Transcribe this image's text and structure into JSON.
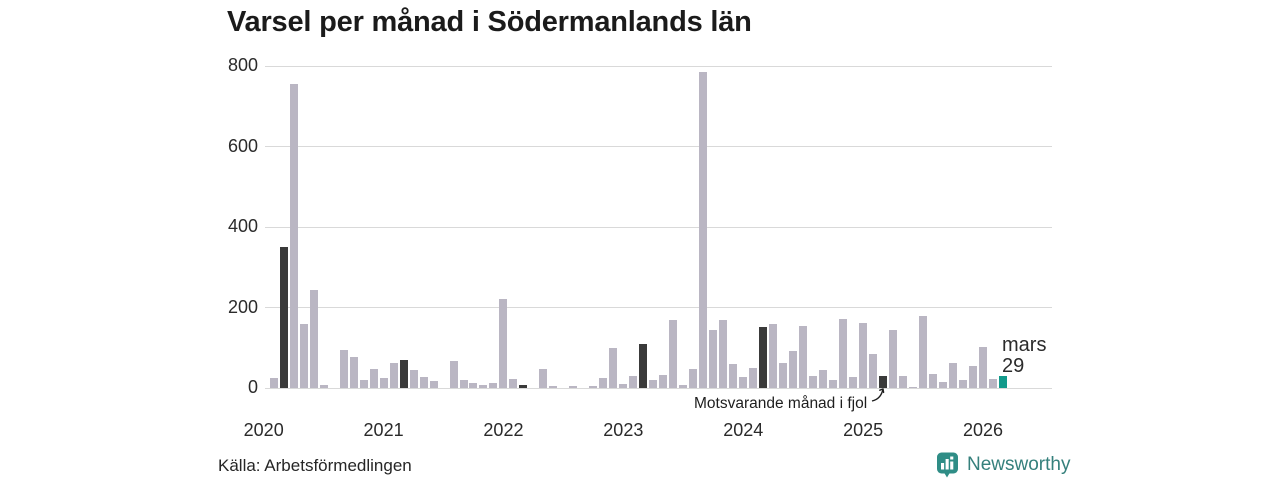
{
  "title": "Varsel per månad i Södermanlands län",
  "source": "Källa: Arbetsförmedlingen",
  "brand": {
    "name": "Newsworthy"
  },
  "annotation": {
    "text": "Motsvarande månad i fjol"
  },
  "current_label": {
    "line1": "mars",
    "line2": "29"
  },
  "colors": {
    "bar_normal": "#bab6c3",
    "bar_highlight": "#3a3a3a",
    "bar_current": "#129a8b",
    "grid": "#d9d9d9",
    "brand_teal": "#2f8d86"
  },
  "chart_data": {
    "type": "bar",
    "title": "Varsel per månad i Södermanlands län",
    "xlabel": "",
    "ylabel": "",
    "ylim": [
      0,
      800
    ],
    "yticks": [
      0,
      200,
      400,
      600,
      800
    ],
    "grid": "horizontal",
    "legend_position": "none",
    "year_ticks": [
      "2020",
      "2021",
      "2022",
      "2023",
      "2024",
      "2025",
      "2026"
    ],
    "highlight_month_index": 2,
    "highlight_meaning": "Motsvarande månad i fjol (mars varje år är mörk)",
    "current_bar": {
      "year": "2026",
      "month": "mars",
      "value": 29
    },
    "series": [
      {
        "year": "2020",
        "values": [
          0,
          25,
          350,
          755,
          158,
          243,
          7,
          0,
          95,
          78,
          20,
          48
        ]
      },
      {
        "year": "2021",
        "values": [
          24,
          63,
          70,
          45,
          28,
          18,
          0,
          68,
          21,
          12,
          8,
          12
        ]
      },
      {
        "year": "2022",
        "values": [
          220,
          22,
          8,
          0,
          47,
          4,
          0,
          4,
          0,
          6,
          25,
          100
        ]
      },
      {
        "year": "2023",
        "values": [
          10,
          30,
          110,
          19,
          32,
          170,
          8,
          48,
          785,
          145,
          168,
          60
        ]
      },
      {
        "year": "2024",
        "values": [
          27,
          50,
          152,
          160,
          63,
          93,
          155,
          31,
          44,
          21,
          171,
          27
        ]
      },
      {
        "year": "2025",
        "values": [
          162,
          85,
          31,
          145,
          29,
          3,
          178,
          36,
          15,
          62,
          21,
          54
        ]
      },
      {
        "year": "2026",
        "values": [
          103,
          23,
          29
        ]
      }
    ]
  }
}
